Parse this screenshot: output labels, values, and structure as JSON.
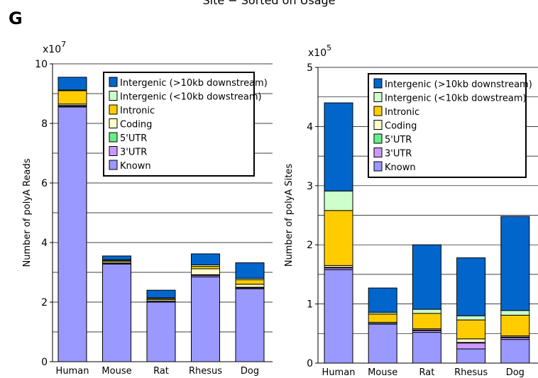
{
  "figure": {
    "panel_letter": "G",
    "top_title": "Site − Sorted on Usage"
  },
  "colors": {
    "Known": "#9999ff",
    "3'UTR": "#cc99ff",
    "5'UTR": "#66ee88",
    "Coding": "#ffffcc",
    "Intronic": "#ffcc00",
    "Intergenic (<10kb dowstream)": "#ccffcc",
    "Intergenic (>10kb downstream)": "#0066cc"
  },
  "chart_data": [
    {
      "type": "bar",
      "stacked": true,
      "categories": [
        "Human",
        "Mouse",
        "Rat",
        "Rhesus",
        "Dog"
      ],
      "ylabel": "Number of polyA Reads",
      "multiplier": "x10",
      "multiplier_exp": "7",
      "ylim": [
        0,
        10
      ],
      "yticks": [
        0,
        2,
        4,
        6,
        8,
        10
      ],
      "grid": true,
      "legend_position": "top-right",
      "legend": [
        "Intergenic (>10kb downstream)",
        "Intergenic (<10kb dowstream)",
        "Intronic",
        "Coding",
        "5'UTR",
        "3'UTR",
        "Known"
      ],
      "series": [
        {
          "name": "Known",
          "values": [
            8.55,
            3.28,
            2.0,
            2.85,
            2.45
          ]
        },
        {
          "name": "3'UTR",
          "values": [
            0.03,
            0.02,
            0.02,
            0.05,
            0.03
          ]
        },
        {
          "name": "5'UTR",
          "values": [
            0.02,
            0.01,
            0.01,
            0.02,
            0.02
          ]
        },
        {
          "name": "Coding",
          "values": [
            0.05,
            0.05,
            0.05,
            0.2,
            0.1
          ]
        },
        {
          "name": "Intronic",
          "values": [
            0.45,
            0.04,
            0.04,
            0.08,
            0.15
          ]
        },
        {
          "name": "Intergenic (<10kb dowstream)",
          "values": [
            0.02,
            0.02,
            0.02,
            0.05,
            0.05
          ]
        },
        {
          "name": "Intergenic (>10kb downstream)",
          "values": [
            0.43,
            0.13,
            0.26,
            0.37,
            0.52
          ]
        }
      ]
    },
    {
      "type": "bar",
      "stacked": true,
      "categories": [
        "Human",
        "Mouse",
        "Rat",
        "Rhesus",
        "Dog"
      ],
      "ylabel": "Number of polyA Sites",
      "multiplier": "x10",
      "multiplier_exp": "5",
      "ylim": [
        0,
        5
      ],
      "yticks": [
        0,
        1,
        2,
        3,
        4,
        5
      ],
      "grid": true,
      "legend_position": "top-right",
      "legend": [
        "Intergenic (>10kb downstream)",
        "Intergenic (<10kb dowstream)",
        "Intronic",
        "Coding",
        "5'UTR",
        "3'UTR",
        "Known"
      ],
      "series": [
        {
          "name": "Known",
          "values": [
            1.58,
            0.66,
            0.52,
            0.24,
            0.4
          ]
        },
        {
          "name": "3'UTR",
          "values": [
            0.03,
            0.01,
            0.03,
            0.1,
            0.03
          ]
        },
        {
          "name": "5'UTR",
          "values": [
            0.01,
            0.0,
            0.01,
            0.01,
            0.01
          ]
        },
        {
          "name": "Coding",
          "values": [
            0.03,
            0.02,
            0.02,
            0.06,
            0.02
          ]
        },
        {
          "name": "Intronic",
          "values": [
            0.93,
            0.14,
            0.26,
            0.32,
            0.35
          ]
        },
        {
          "name": "Intergenic (<10kb dowstream)",
          "values": [
            0.33,
            0.03,
            0.07,
            0.07,
            0.08
          ]
        },
        {
          "name": "Intergenic (>10kb downstream)",
          "values": [
            1.49,
            0.41,
            1.09,
            0.98,
            1.59
          ]
        }
      ]
    }
  ]
}
